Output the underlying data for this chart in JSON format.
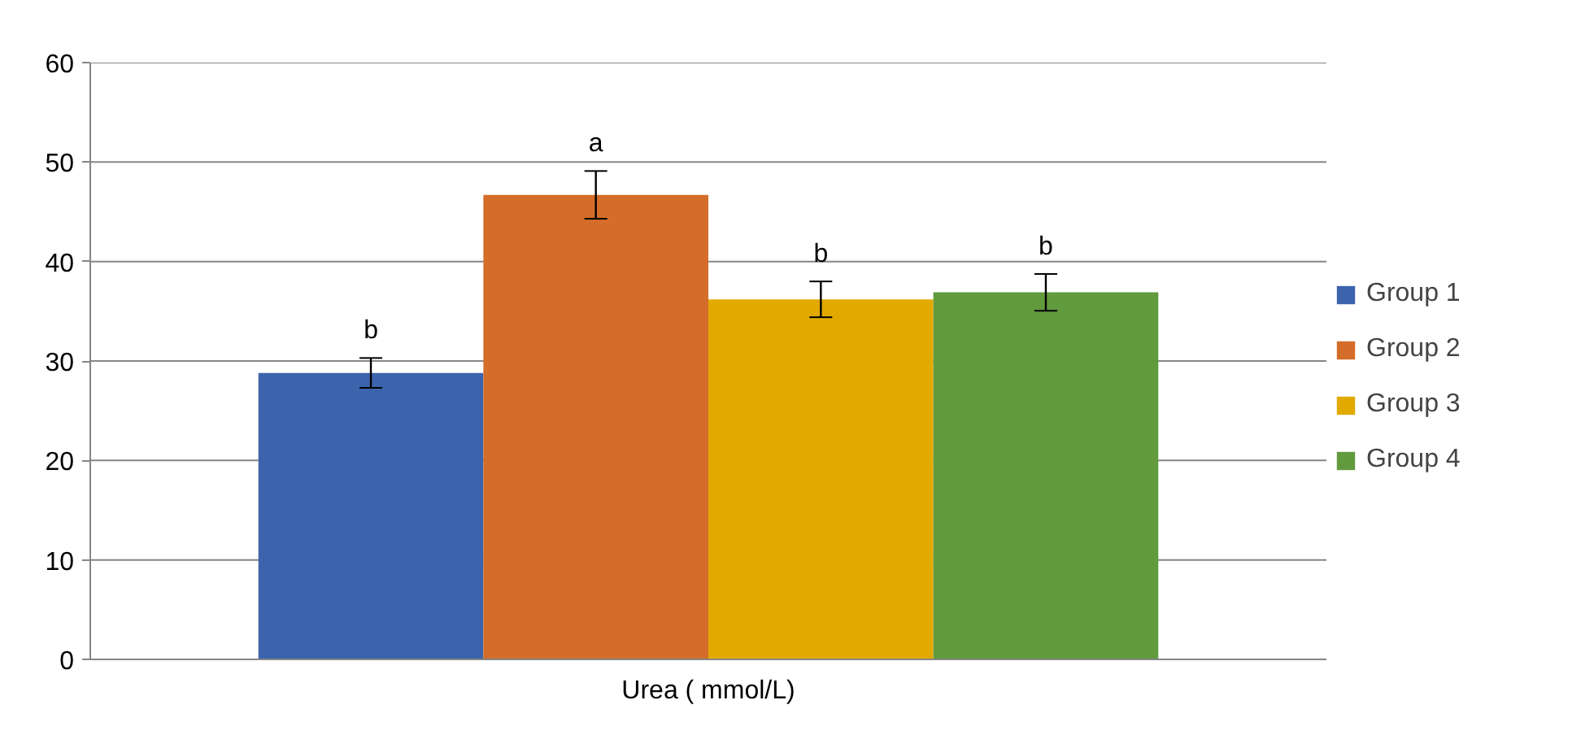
{
  "chart_data": {
    "type": "bar",
    "categories": [
      "Urea ( mmol/L)"
    ],
    "series": [
      {
        "name": "Group 1",
        "color": "#3c64ad",
        "values": [
          28.8
        ],
        "errors": [
          1.5
        ],
        "value_labels": [
          "b"
        ]
      },
      {
        "name": "Group 2",
        "color": "#d36d29",
        "values": [
          46.7
        ],
        "errors": [
          2.4
        ],
        "value_labels": [
          "a"
        ]
      },
      {
        "name": "Group 3",
        "color": "#e2aa00",
        "values": [
          36.2
        ],
        "errors": [
          1.8
        ],
        "value_labels": [
          "b"
        ]
      },
      {
        "name": "Group 4",
        "color": "#629a3e",
        "values": [
          36.9
        ],
        "errors": [
          1.85
        ],
        "value_labels": [
          "b"
        ]
      }
    ],
    "ylim": [
      0,
      60
    ],
    "yticks": [
      0,
      10,
      20,
      30,
      40,
      50,
      60
    ],
    "grid": "y",
    "legend": "right"
  }
}
